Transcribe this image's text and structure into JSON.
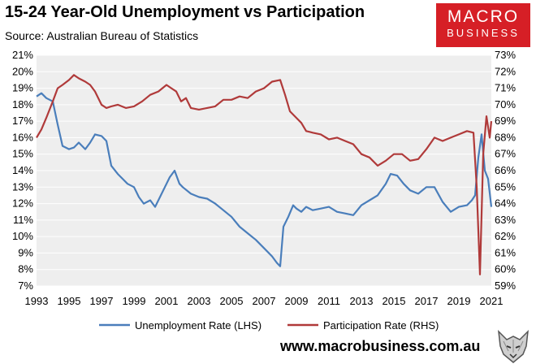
{
  "title": "15-24 Year-Old Unemployment vs Participation",
  "subtitle": "Source: Australian Bureau of Statistics",
  "logo": {
    "line1": "MACRO",
    "line2": "BUSINESS"
  },
  "footer_url": "www.macrobusiness.com.au",
  "colors": {
    "unemployment": "#4a7ebb",
    "participation": "#b03a3a",
    "plot_bg": "#eeeeee",
    "logo_bg": "#d61f26"
  },
  "chart_data": {
    "type": "line",
    "title": "15-24 Year-Old Unemployment vs Participation",
    "x_ticks": [
      "1993",
      "1995",
      "1997",
      "1999",
      "2001",
      "2003",
      "2005",
      "2007",
      "2009",
      "2011",
      "2013",
      "2015",
      "2017",
      "2019",
      "2021"
    ],
    "x_range": [
      1993,
      2021
    ],
    "y_left_ticks": [
      "7%",
      "8%",
      "9%",
      "10%",
      "11%",
      "12%",
      "13%",
      "14%",
      "15%",
      "16%",
      "17%",
      "18%",
      "19%",
      "20%",
      "21%"
    ],
    "y_left_range": [
      7,
      21
    ],
    "y_right_ticks": [
      "59%",
      "60%",
      "61%",
      "62%",
      "63%",
      "64%",
      "65%",
      "66%",
      "67%",
      "68%",
      "69%",
      "70%",
      "71%",
      "72%",
      "73%"
    ],
    "y_right_range": [
      59,
      73
    ],
    "series": [
      {
        "name": "Unemployment Rate (LHS)",
        "axis": "left",
        "x": [
          1993.0,
          1993.3,
          1993.6,
          1994.0,
          1994.3,
          1994.6,
          1995.0,
          1995.3,
          1995.6,
          1996.0,
          1996.3,
          1996.6,
          1997.0,
          1997.3,
          1997.6,
          1998.0,
          1998.3,
          1998.6,
          1999.0,
          1999.3,
          1999.6,
          2000.0,
          2000.3,
          2000.6,
          2000.9,
          2001.2,
          2001.5,
          2001.8,
          2002.0,
          2002.5,
          2003.0,
          2003.5,
          2004.0,
          2004.5,
          2005.0,
          2005.5,
          2006.0,
          2006.5,
          2007.0,
          2007.5,
          2007.8,
          2008.0,
          2008.2,
          2008.5,
          2008.8,
          2009.0,
          2009.3,
          2009.6,
          2010.0,
          2010.5,
          2011.0,
          2011.5,
          2012.0,
          2012.5,
          2013.0,
          2013.5,
          2014.0,
          2014.5,
          2014.8,
          2015.2,
          2015.6,
          2016.0,
          2016.5,
          2017.0,
          2017.5,
          2018.0,
          2018.5,
          2019.0,
          2019.5,
          2019.8,
          2020.0,
          2020.2,
          2020.4,
          2020.6,
          2020.8,
          2021.0
        ],
        "values": [
          18.5,
          18.7,
          18.4,
          18.2,
          16.8,
          15.5,
          15.3,
          15.4,
          15.7,
          15.3,
          15.7,
          16.2,
          16.1,
          15.8,
          14.3,
          13.8,
          13.5,
          13.2,
          13.0,
          12.4,
          12.0,
          12.2,
          11.8,
          12.4,
          13.0,
          13.6,
          14.0,
          13.2,
          13.0,
          12.6,
          12.4,
          12.3,
          12.0,
          11.6,
          11.2,
          10.6,
          10.2,
          9.8,
          9.3,
          8.8,
          8.4,
          8.2,
          10.6,
          11.2,
          11.9,
          11.7,
          11.5,
          11.8,
          11.6,
          11.7,
          11.8,
          11.5,
          11.4,
          11.3,
          11.9,
          12.2,
          12.5,
          13.2,
          13.8,
          13.7,
          13.2,
          12.8,
          12.6,
          13.0,
          13.0,
          12.1,
          11.5,
          11.8,
          11.9,
          12.2,
          12.5,
          14.8,
          16.2,
          14.0,
          13.5,
          11.8
        ]
      },
      {
        "name": "Participation Rate (RHS)",
        "axis": "right",
        "x": [
          1993.0,
          1993.3,
          1993.6,
          1994.0,
          1994.3,
          1994.6,
          1995.0,
          1995.3,
          1995.6,
          1996.0,
          1996.3,
          1996.6,
          1997.0,
          1997.3,
          1997.6,
          1998.0,
          1998.5,
          1999.0,
          1999.5,
          2000.0,
          2000.5,
          2001.0,
          2001.3,
          2001.6,
          2001.9,
          2002.2,
          2002.5,
          2003.0,
          2003.5,
          2004.0,
          2004.5,
          2005.0,
          2005.5,
          2006.0,
          2006.5,
          2007.0,
          2007.5,
          2008.0,
          2008.3,
          2008.6,
          2009.0,
          2009.3,
          2009.6,
          2010.0,
          2010.5,
          2011.0,
          2011.5,
          2012.0,
          2012.5,
          2013.0,
          2013.5,
          2014.0,
          2014.5,
          2015.0,
          2015.5,
          2016.0,
          2016.5,
          2017.0,
          2017.5,
          2018.0,
          2018.5,
          2019.0,
          2019.5,
          2019.9,
          2020.1,
          2020.3,
          2020.5,
          2020.7,
          2020.9,
          2021.0
        ],
        "values": [
          68.0,
          68.5,
          69.2,
          70.2,
          71.0,
          71.2,
          71.5,
          71.8,
          71.6,
          71.4,
          71.2,
          70.8,
          70.0,
          69.8,
          69.9,
          70.0,
          69.8,
          69.9,
          70.2,
          70.6,
          70.8,
          71.2,
          71.0,
          70.8,
          70.2,
          70.4,
          69.8,
          69.7,
          69.8,
          69.9,
          70.3,
          70.3,
          70.5,
          70.4,
          70.8,
          71.0,
          71.4,
          71.5,
          70.6,
          69.6,
          69.2,
          68.9,
          68.4,
          68.3,
          68.2,
          67.9,
          68.0,
          67.8,
          67.6,
          67.0,
          66.8,
          66.3,
          66.6,
          67.0,
          67.0,
          66.6,
          66.7,
          67.3,
          68.0,
          67.8,
          68.0,
          68.2,
          68.4,
          68.3,
          65.0,
          59.7,
          67.0,
          69.3,
          68.0,
          69.0
        ]
      }
    ]
  }
}
